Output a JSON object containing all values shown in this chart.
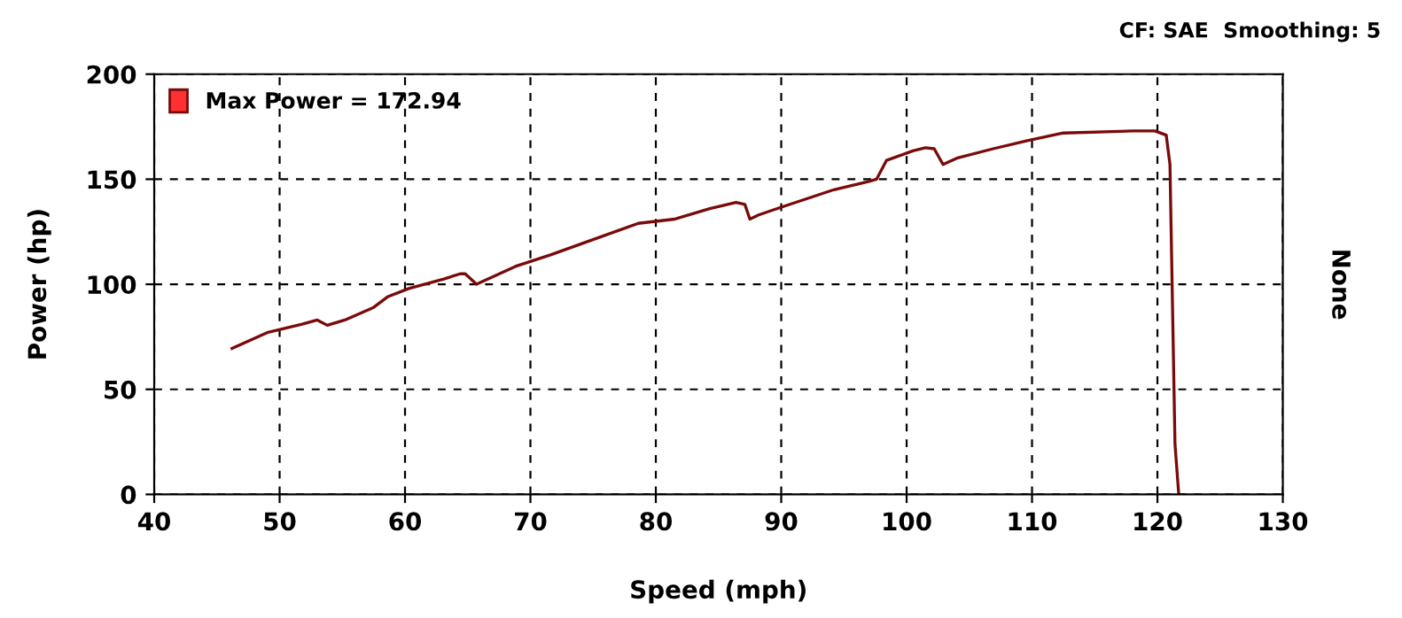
{
  "chart_data": {
    "type": "line",
    "xlabel": "Speed (mph)",
    "ylabel": "Power (hp)",
    "y2label": "None",
    "annotations": [
      "CF: SAE  Smoothing: 5"
    ],
    "x": [
      46.2,
      49.0,
      51.8,
      53.0,
      53.8,
      55.2,
      57.5,
      58.6,
      60.3,
      63.1,
      64.4,
      64.8,
      65.7,
      68.8,
      71.6,
      74.4,
      78.6,
      81.5,
      84.3,
      86.4,
      87.1,
      87.5,
      88.2,
      89.9,
      94.2,
      97.0,
      97.6,
      98.4,
      100.5,
      101.5,
      102.2,
      102.9,
      104.0,
      106.9,
      109.7,
      112.5,
      118.1,
      119.8,
      120.7,
      121.0,
      121.4,
      121.7
    ],
    "series": [
      {
        "name": "Max Power = 172.94",
        "color": "#7a0a0a",
        "values": [
          69.5,
          77,
          81,
          83,
          80.5,
          83,
          89,
          94,
          98,
          102.5,
          105,
          105,
          100,
          108.5,
          114,
          120,
          129,
          131,
          136,
          139,
          138,
          131,
          133,
          136.5,
          145,
          149,
          150,
          159,
          163.5,
          165,
          164.5,
          157,
          160,
          164.5,
          168.5,
          172,
          173,
          173,
          171,
          157,
          24,
          0
        ]
      }
    ],
    "xlim": [
      40,
      130
    ],
    "xticks": [
      40,
      50,
      60,
      70,
      80,
      90,
      100,
      110,
      120,
      130
    ],
    "ylim": [
      0,
      200
    ],
    "yticks": [
      0,
      50,
      100,
      150,
      200
    ],
    "grid": true,
    "legend": "top left",
    "marker": "none",
    "line_style": "solid"
  }
}
